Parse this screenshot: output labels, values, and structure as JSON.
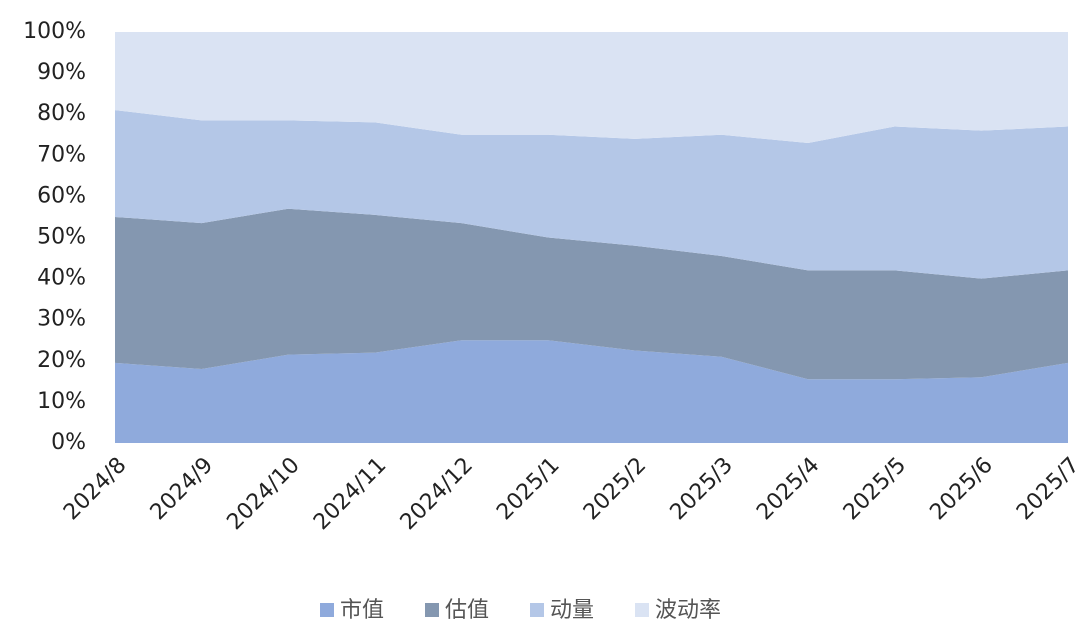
{
  "chart_data": {
    "type": "stacked_area_percent",
    "categories": [
      "2024/8",
      "2024/9",
      "2024/10",
      "2024/11",
      "2024/12",
      "2025/1",
      "2025/2",
      "2025/3",
      "2025/4",
      "2025/5",
      "2025/6",
      "2025/7"
    ],
    "series": [
      {
        "name": "市值",
        "color": "#8faadc",
        "values": [
          19.5,
          18,
          21.5,
          22,
          25,
          25,
          22.5,
          21,
          15.5,
          15.5,
          16,
          19.5
        ]
      },
      {
        "name": "估值",
        "color": "#8497b0",
        "values": [
          35.5,
          35.5,
          35.5,
          33.5,
          28.5,
          25,
          25.5,
          24.5,
          26.5,
          26.5,
          24,
          22.5
        ]
      },
      {
        "name": "动量",
        "color": "#b4c7e7",
        "values": [
          26,
          25,
          21.5,
          22.5,
          21.5,
          25,
          26,
          29.5,
          31,
          35,
          36,
          35
        ]
      },
      {
        "name": "波动率",
        "color": "#dae3f3",
        "values": [
          19,
          21.5,
          21.5,
          22,
          25,
          25,
          26,
          25,
          27,
          23,
          24,
          23
        ]
      }
    ],
    "ylim": [
      0,
      100
    ],
    "yticks": [
      {
        "value": 0,
        "label": "0%"
      },
      {
        "value": 10,
        "label": "10%"
      },
      {
        "value": 20,
        "label": "20%"
      },
      {
        "value": 30,
        "label": "30%"
      },
      {
        "value": 40,
        "label": "40%"
      },
      {
        "value": 50,
        "label": "50%"
      },
      {
        "value": 60,
        "label": "60%"
      },
      {
        "value": 70,
        "label": "70%"
      },
      {
        "value": 80,
        "label": "80%"
      },
      {
        "value": 90,
        "label": "90%"
      },
      {
        "value": 100,
        "label": "100%"
      }
    ],
    "legend": "bottom"
  }
}
